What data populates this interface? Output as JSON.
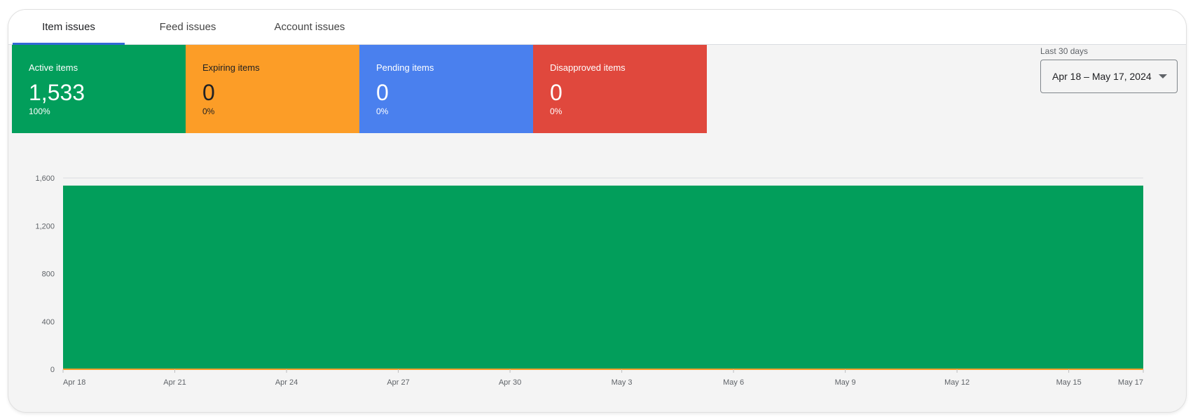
{
  "tabs": [
    {
      "label": "Item issues",
      "active": true
    },
    {
      "label": "Feed issues"
    },
    {
      "label": "Account issues"
    }
  ],
  "tiles": [
    {
      "label": "Active items",
      "value": "1,533",
      "percent": "100%",
      "color": "#029e5b",
      "text_color": "#ffffff"
    },
    {
      "label": "Expiring items",
      "value": "0",
      "percent": "0%",
      "color": "#fc9d27",
      "text_color": "#202124"
    },
    {
      "label": "Pending items",
      "value": "0",
      "percent": "0%",
      "color": "#4a80ee",
      "text_color": "#ffffff"
    },
    {
      "label": "Disapproved items",
      "value": "0",
      "percent": "0%",
      "color": "#e0483d",
      "text_color": "#ffffff"
    }
  ],
  "date_range": {
    "label": "Last 30 days",
    "value": "Apr 18 – May 17, 2024",
    "icon": "dropdown-arrow-icon"
  },
  "chart_data": {
    "type": "area",
    "ylim": [
      0,
      1600
    ],
    "yticks": [
      "0",
      "400",
      "800",
      "1,200",
      "1,600"
    ],
    "ytick_values": [
      0,
      400,
      800,
      1200,
      1600
    ],
    "xticks": [
      "Apr 18",
      "Apr 21",
      "Apr 24",
      "Apr 27",
      "Apr 30",
      "May 3",
      "May 6",
      "May 9",
      "May 12",
      "May 15",
      "May 17"
    ],
    "xtick_index": [
      0,
      3,
      6,
      9,
      12,
      15,
      18,
      21,
      24,
      27,
      29
    ],
    "grid": true,
    "series": [
      {
        "color": "#029e5b",
        "values": [
          1533,
          1533,
          1533,
          1533,
          1533,
          1533,
          1533,
          1533,
          1533,
          1533,
          1533,
          1533,
          1533,
          1533,
          1533,
          1533,
          1533,
          1533,
          1533,
          1533,
          1533,
          1533,
          1533,
          1533,
          1533,
          1533,
          1533,
          1533,
          1533,
          1533
        ]
      },
      {
        "color": "#fc9d27",
        "values": [
          0,
          0,
          0,
          0,
          0,
          0,
          0,
          0,
          0,
          0,
          0,
          0,
          0,
          0,
          0,
          0,
          0,
          0,
          0,
          0,
          0,
          0,
          0,
          0,
          0,
          0,
          0,
          0,
          0,
          0
        ]
      }
    ]
  }
}
